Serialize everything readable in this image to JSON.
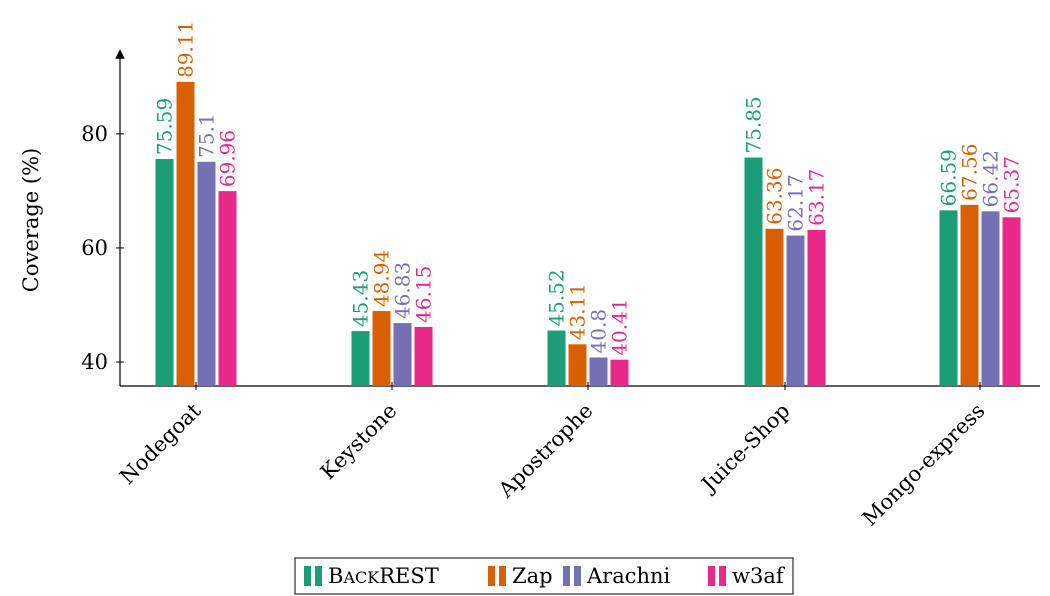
{
  "chart_data": {
    "type": "bar",
    "ylabel": "Coverage (%)",
    "xlabel": "",
    "title": "",
    "categories": [
      "Nodegoat",
      "Keystone",
      "Apostrophe",
      "Juice-Shop",
      "Mongo-express"
    ],
    "series": [
      {
        "name": "BACKREST",
        "color": "#1b9e77",
        "values": [
          75.59,
          45.43,
          45.52,
          75.85,
          66.59
        ],
        "labels": [
          "75.59",
          "45.43",
          "45.52",
          "75.85",
          "66.59"
        ]
      },
      {
        "name": "Zap",
        "color": "#d95f02",
        "values": [
          89.11,
          48.94,
          43.11,
          63.36,
          67.56
        ],
        "labels": [
          "89.11",
          "48.94",
          "43.11",
          "63.36",
          "67.56"
        ]
      },
      {
        "name": "Arachni",
        "color": "#7570b3",
        "values": [
          75.1,
          46.83,
          40.8,
          62.17,
          66.42
        ],
        "labels": [
          "75.1",
          "46.83",
          "40.8",
          "62.17",
          "66.42"
        ]
      },
      {
        "name": "w3af",
        "color": "#e7298a",
        "values": [
          69.96,
          46.15,
          40.41,
          63.17,
          65.37
        ],
        "labels": [
          "69.96",
          "46.15",
          "40.41",
          "63.17",
          "65.37"
        ]
      }
    ],
    "yticks": [
      40,
      60,
      80
    ],
    "ytick_labels": [
      "40",
      "60",
      "80"
    ],
    "ylim": [
      35.8,
      94
    ],
    "legend_position": "bottom-center",
    "grid": false
  }
}
